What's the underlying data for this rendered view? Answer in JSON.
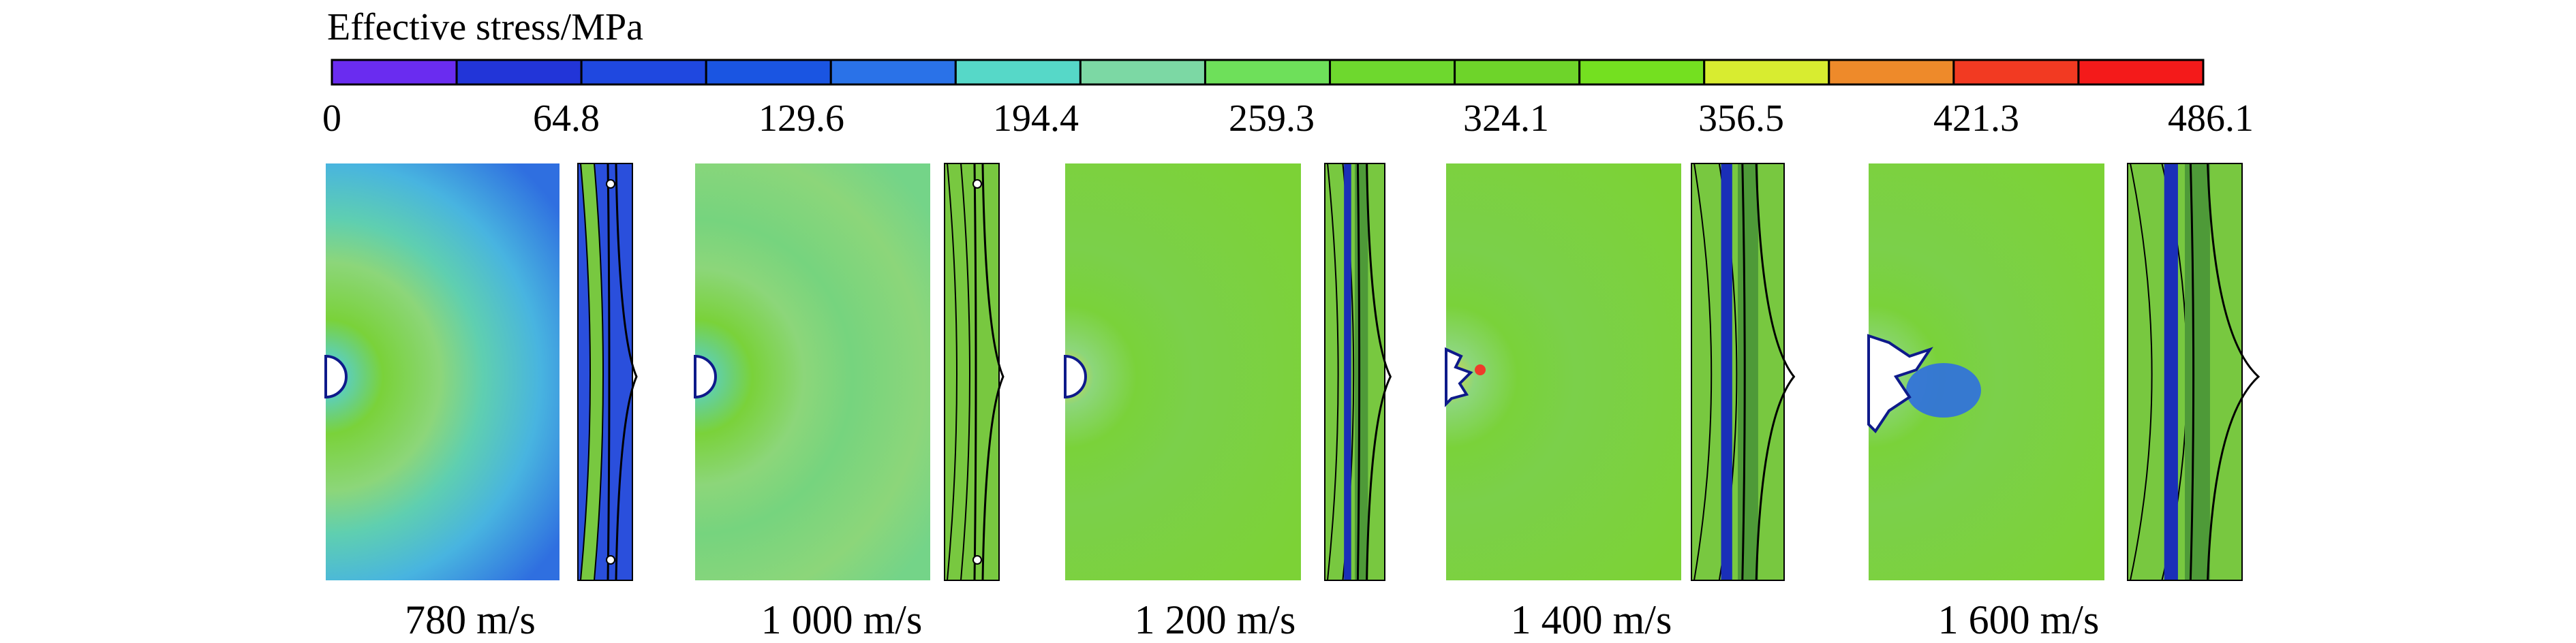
{
  "legend": {
    "title": "Effective stress/MPa",
    "bands": [
      "#6a2cf0",
      "#2235d8",
      "#1f48e0",
      "#1a55e2",
      "#2a72e8",
      "#56d8c8",
      "#7cd8a4",
      "#6ee05a",
      "#6ed82e",
      "#6ed42a",
      "#74e020",
      "#d8ec30",
      "#ee8a2a",
      "#f23a22",
      "#f41a1a"
    ],
    "ticks": [
      "0",
      "64.8",
      "129.6",
      "194.4",
      "259.3",
      "324.1",
      "356.5",
      "421.3",
      "486.1"
    ]
  },
  "colors": {
    "field_green": "#7ad23a",
    "ring_light": "#8cd67a",
    "ring_cyan": "#5fcfb0",
    "ring_blue": "#2f6fe0",
    "edge_dark": "#0e1a8a",
    "hot_red": "#ef3b2a",
    "strip_blue": "#2a4fdc",
    "strip_green": "#78c840"
  },
  "panels": [
    {
      "label": "780 m/s",
      "shape": "round-hole",
      "plate_field": "green-blue-rings",
      "strip_core": "blue"
    },
    {
      "label": "1 000 m/s",
      "shape": "round-hole",
      "plate_field": "green-cyan-rings",
      "strip_core": "green"
    },
    {
      "label": "1 200 m/s",
      "shape": "round-hole",
      "plate_field": "green",
      "strip_core": "dark-bands"
    },
    {
      "label": "1 400 m/s",
      "shape": "jagged-hole",
      "plate_field": "green",
      "strip_core": "dark-bands"
    },
    {
      "label": "1 600 m/s",
      "shape": "torn-hole",
      "plate_field": "green",
      "strip_core": "dark-bands"
    }
  ]
}
